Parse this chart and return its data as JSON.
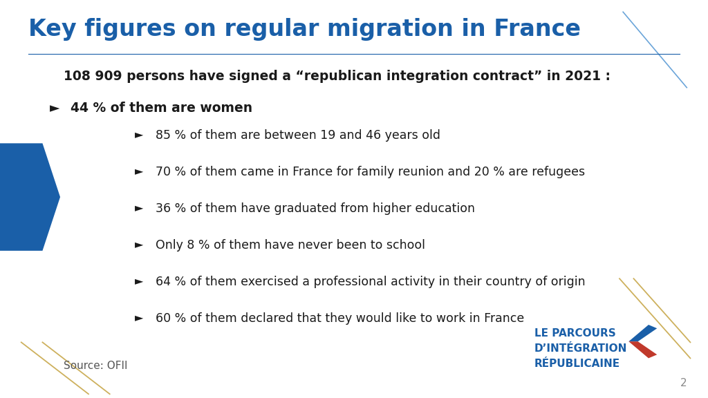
{
  "title": "Key figures on regular migration in France",
  "title_color": "#1a5fa8",
  "title_fontsize": 24,
  "bg_color": "#ffffff",
  "line1": "108 909 persons have signed a “republican integration contract” in 2021 :",
  "line1_fontsize": 13.5,
  "line2_text_bold": "44 % of them are women",
  "line2_text_rest": " :",
  "line2_fontsize": 13.5,
  "bullet_items": [
    "85 % of them are between 19 and 46 years old",
    "70 % of them came in France for family reunion and 20 % are refugees",
    "36 % of them have graduated from higher education",
    "Only 8 % of them have never been to school",
    "64 % of them exercised a professional activity in their country of origin",
    "60 % of them declared that they would like to work in France"
  ],
  "bullet_fontsize": 12.5,
  "source_text": "Source: OFII",
  "source_fontsize": 11,
  "logo_line1": "LE PARCOURS",
  "logo_line2": "D’INTÉGRATION",
  "logo_line3": "RÉPUBLICAINE",
  "logo_color": "#1a5fa8",
  "logo_fontsize": 11,
  "page_num": "2",
  "dark_blue": "#1a5fa8",
  "gold_color": "#c8a84b",
  "red_color": "#c0392b",
  "light_blue_line": "#5b9bd5"
}
